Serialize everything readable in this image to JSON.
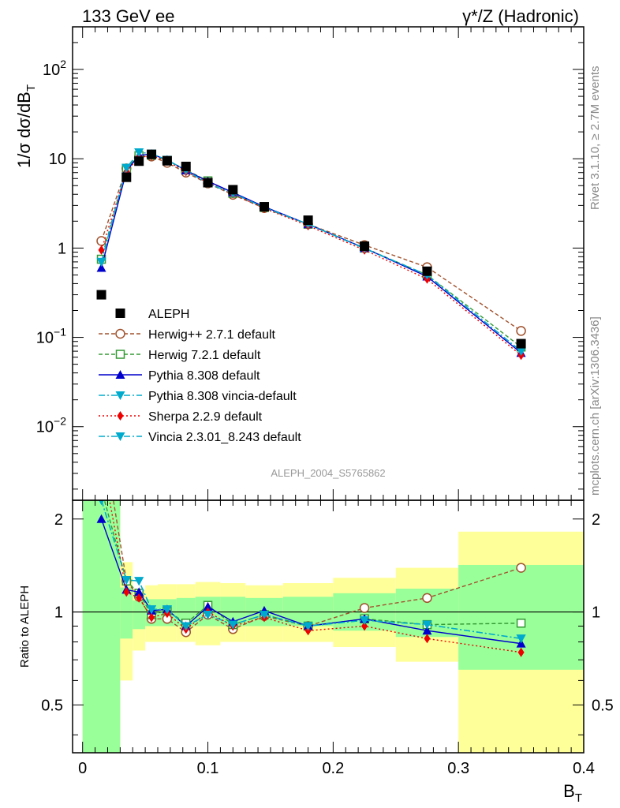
{
  "header": {
    "left": "133 GeV ee",
    "right": "γ*/Z (Hadronic)"
  },
  "side_text": {
    "rivet": "Rivet 3.1.10, ≥ 2.7M events",
    "mcplots": "mcplots.cern.ch [arXiv:1306.3436]"
  },
  "watermark": "ALEPH_2004_S5765862",
  "chart_data": [
    {
      "type": "line",
      "ylabel": "1/σ dσ/dB_T",
      "ylim": [
        0.0015,
        300
      ],
      "xlim": [
        -0.008,
        0.4
      ],
      "yscale": "log",
      "yticks": [
        {
          "v": 0.01,
          "base": "10",
          "exp": "−2"
        },
        {
          "v": 0.1,
          "base": "10",
          "exp": "−1"
        },
        {
          "v": 1,
          "base": "1",
          "exp": ""
        },
        {
          "v": 10,
          "base": "10",
          "exp": ""
        },
        {
          "v": 100,
          "base": "10",
          "exp": "2"
        }
      ],
      "legend_position": "bottom-left",
      "x": [
        0.015,
        0.035,
        0.045,
        0.055,
        0.0675,
        0.0825,
        0.1,
        0.12,
        0.145,
        0.18,
        0.225,
        0.275,
        0.35
      ],
      "data": {
        "name": "ALEPH",
        "values": [
          0.3,
          6.2,
          9.4,
          11.2,
          9.5,
          8.2,
          5.4,
          4.5,
          2.9,
          2.05,
          1.05,
          0.55,
          0.085
        ]
      },
      "series": [
        {
          "name": "Herwig++ 2.7.1 default",
          "color": "#a0522d",
          "dash": "5,3",
          "marker": "circle-open",
          "values": [
            1.2,
            7.8,
            10.5,
            10.6,
            9.0,
            7.0,
            5.3,
            3.95,
            2.8,
            1.85,
            1.08,
            0.61,
            0.118
          ]
        },
        {
          "name": "Herwig 7.2.1 default",
          "color": "#339933",
          "dash": "5,3",
          "marker": "square-open",
          "values": [
            0.75,
            7.8,
            10.8,
            11.0,
            9.6,
            7.5,
            5.65,
            4.1,
            2.85,
            1.85,
            1.0,
            0.5,
            0.078
          ]
        },
        {
          "name": "Pythia 8.308 default",
          "color": "#0000cc",
          "dash": "",
          "marker": "triangle-up",
          "values": [
            0.6,
            7.3,
            10.9,
            11.3,
            9.7,
            7.4,
            5.6,
            4.2,
            2.9,
            1.85,
            1.0,
            0.48,
            0.067
          ]
        },
        {
          "name": "Pythia 8.308 vincia-default",
          "color": "#00aacc",
          "dash": "8,3,2,3",
          "marker": "triangle-down",
          "values": [
            0.7,
            7.9,
            11.8,
            11.4,
            9.7,
            7.4,
            5.3,
            4.1,
            2.85,
            1.85,
            0.99,
            0.5,
            0.07
          ]
        },
        {
          "name": "Sherpa 2.2.9 default",
          "color": "#ee0000",
          "dash": "2,3",
          "marker": "diamond",
          "values": [
            0.95,
            7.2,
            10.4,
            10.8,
            9.4,
            7.2,
            5.4,
            4.05,
            2.78,
            1.78,
            0.95,
            0.45,
            0.063
          ]
        },
        {
          "name": "Vincia 2.3.01_8.243 default",
          "color": "#00aacc",
          "dash": "8,3,2,3",
          "marker": "triangle-down",
          "values": [
            0.7,
            7.9,
            11.8,
            11.4,
            9.7,
            7.4,
            5.3,
            4.1,
            2.85,
            1.85,
            0.99,
            0.5,
            0.07
          ]
        }
      ]
    },
    {
      "type": "line",
      "xlabel": "B_T",
      "ylabel": "Ratio to ALEPH",
      "ylim": [
        0.35,
        2.3
      ],
      "xlim": [
        -0.008,
        0.4
      ],
      "yticks": [
        "0.5",
        "1",
        "2"
      ],
      "xticks": [
        "0",
        "0.1",
        "0.2",
        "0.3",
        "0.4"
      ],
      "bands": {
        "edges": [
          0.0,
          0.03,
          0.04,
          0.05,
          0.06,
          0.075,
          0.09,
          0.11,
          0.13,
          0.16,
          0.2,
          0.25,
          0.3,
          0.4
        ],
        "yellow": [
          [
            0.35,
            2.3
          ],
          [
            0.6,
            1.45
          ],
          [
            0.75,
            1.18
          ],
          [
            0.8,
            1.22
          ],
          [
            0.8,
            1.23
          ],
          [
            0.8,
            1.23
          ],
          [
            0.78,
            1.25
          ],
          [
            0.8,
            1.24
          ],
          [
            0.8,
            1.22
          ],
          [
            0.8,
            1.24
          ],
          [
            0.77,
            1.29
          ],
          [
            0.69,
            1.39
          ],
          [
            0.35,
            1.82
          ]
        ],
        "green": [
          [
            0.35,
            2.3
          ],
          [
            0.82,
            1.2
          ],
          [
            0.88,
            1.09
          ],
          [
            0.9,
            1.1
          ],
          [
            0.9,
            1.1
          ],
          [
            0.9,
            1.11
          ],
          [
            0.9,
            1.12
          ],
          [
            0.9,
            1.12
          ],
          [
            0.9,
            1.11
          ],
          [
            0.9,
            1.12
          ],
          [
            0.87,
            1.15
          ],
          [
            0.83,
            1.19
          ],
          [
            0.65,
            1.42
          ]
        ],
        "colors": {
          "yellow": "#ffff99",
          "green": "#99ff99"
        }
      },
      "series": [
        {
          "name": "Herwig++ 2.7.1 default",
          "values": [
            4.0,
            1.26,
            1.12,
            0.95,
            0.95,
            0.86,
            0.98,
            0.88,
            0.97,
            0.9,
            1.03,
            1.11,
            1.39
          ]
        },
        {
          "name": "Herwig 7.2.1 default",
          "values": [
            2.5,
            1.26,
            1.15,
            0.98,
            1.01,
            0.92,
            1.05,
            0.91,
            0.98,
            0.9,
            0.95,
            0.91,
            0.92
          ]
        },
        {
          "name": "Pythia 8.308 default",
          "values": [
            2.0,
            1.18,
            1.16,
            1.01,
            1.02,
            0.9,
            1.04,
            0.93,
            1.01,
            0.9,
            0.95,
            0.87,
            0.79
          ]
        },
        {
          "name": "Pythia 8.308 vincia-default",
          "values": [
            2.3,
            1.27,
            1.26,
            1.02,
            1.02,
            0.9,
            0.98,
            0.91,
            0.98,
            0.9,
            0.94,
            0.91,
            0.82
          ]
        },
        {
          "name": "Sherpa 2.2.9 default",
          "values": [
            3.2,
            1.16,
            1.11,
            0.96,
            0.99,
            0.88,
            1.0,
            0.9,
            0.96,
            0.87,
            0.9,
            0.82,
            0.74
          ]
        },
        {
          "name": "Vincia 2.3.01_8.243 default",
          "values": [
            2.3,
            1.27,
            1.26,
            1.02,
            1.02,
            0.9,
            0.98,
            0.91,
            0.98,
            0.9,
            0.94,
            0.91,
            0.82
          ]
        }
      ]
    }
  ]
}
